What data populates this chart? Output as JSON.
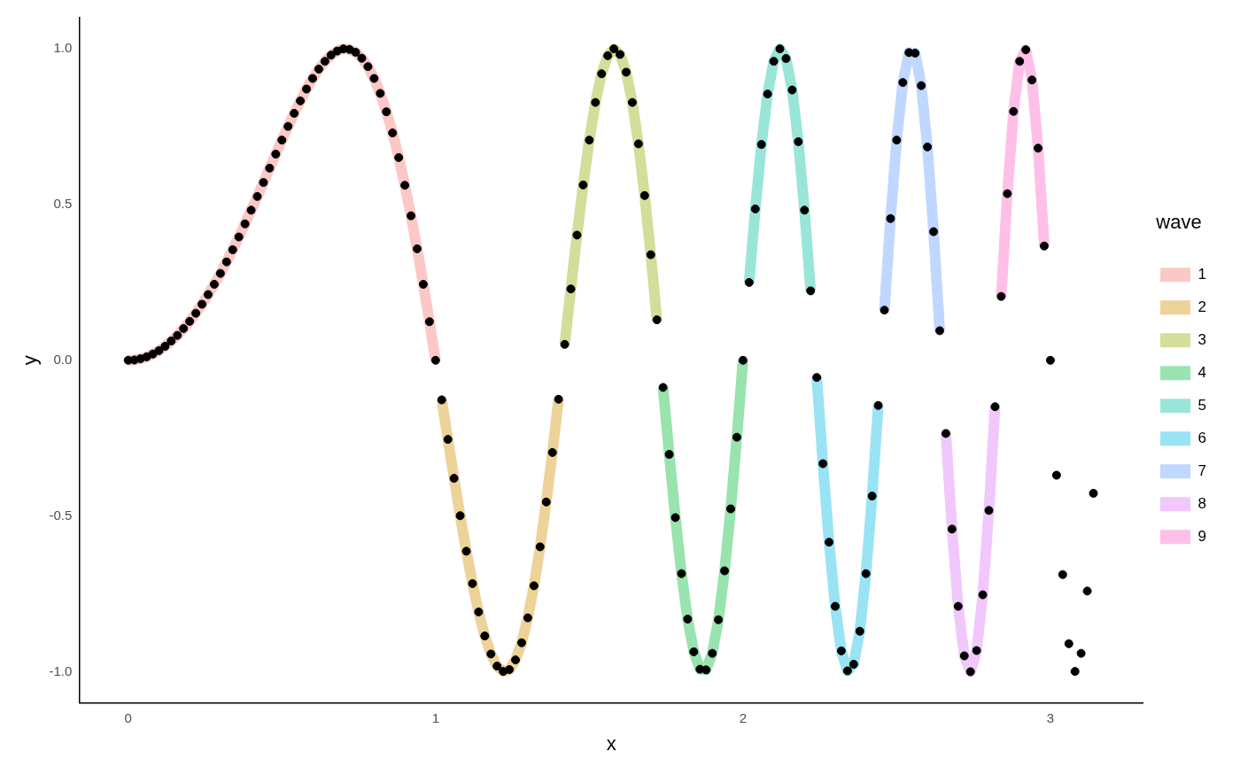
{
  "chart_data": {
    "type": "line",
    "xlabel": "x",
    "ylabel": "y",
    "legend_title": "wave",
    "legend": "right",
    "grid": false,
    "xlim": [
      -0.157,
      3.3
    ],
    "xticks": [
      0,
      1,
      2,
      3
    ],
    "ylim": [
      -1.1,
      1.1
    ],
    "yticks": [
      {
        "value": -1,
        "label": "-1.0"
      },
      {
        "value": -0.5,
        "label": "-0.5"
      },
      {
        "value": 0,
        "label": "0.0"
      },
      {
        "value": 0.5,
        "label": "0.5"
      },
      {
        "value": 1,
        "label": "1.0"
      }
    ],
    "series": [
      {
        "name": "1",
        "color": "#fcc8c5",
        "x": [
          0,
          0.02,
          0.04,
          0.06,
          0.08,
          0.1,
          0.12,
          0.14,
          0.16,
          0.18,
          0.2,
          0.22,
          0.24,
          0.26,
          0.28,
          0.3,
          0.32,
          0.34,
          0.36,
          0.38,
          0.4,
          0.42,
          0.44,
          0.46,
          0.48,
          0.5,
          0.52,
          0.54,
          0.56,
          0.58,
          0.6,
          0.62,
          0.64,
          0.66,
          0.68,
          0.7,
          0.72,
          0.74,
          0.76,
          0.78,
          0.8,
          0.82,
          0.84,
          0.86,
          0.88,
          0.9,
          0.92,
          0.94,
          0.96,
          0.98,
          1
        ],
        "values": [
          0,
          0.001,
          0.005,
          0.011,
          0.02,
          0.031,
          0.045,
          0.062,
          0.08,
          0.102,
          0.125,
          0.151,
          0.18,
          0.211,
          0.244,
          0.279,
          0.316,
          0.355,
          0.396,
          0.438,
          0.482,
          0.526,
          0.571,
          0.617,
          0.662,
          0.707,
          0.751,
          0.793,
          0.833,
          0.871,
          0.905,
          0.935,
          0.96,
          0.98,
          0.993,
          1,
          0.998,
          0.989,
          0.97,
          0.943,
          0.905,
          0.857,
          0.798,
          0.73,
          0.651,
          0.562,
          0.464,
          0.358,
          0.244,
          0.124,
          0
        ]
      },
      {
        "name": "2",
        "color": "#edd399",
        "x": [
          1.02,
          1.04,
          1.06,
          1.08,
          1.1,
          1.12,
          1.14,
          1.16,
          1.18,
          1.2,
          1.22,
          1.24,
          1.26,
          1.28,
          1.3,
          1.32,
          1.34,
          1.36,
          1.38,
          1.4
        ],
        "values": [
          -0.127,
          -0.254,
          -0.379,
          -0.499,
          -0.613,
          -0.717,
          -0.808,
          -0.885,
          -0.943,
          -0.982,
          -0.999,
          -0.993,
          -0.962,
          -0.907,
          -0.827,
          -0.724,
          -0.599,
          -0.455,
          -0.296,
          -0.125
        ]
      },
      {
        "name": "3",
        "color": "#d4dd99",
        "x": [
          1.42,
          1.44,
          1.46,
          1.48,
          1.5,
          1.52,
          1.54,
          1.56,
          1.58,
          1.6,
          1.62,
          1.64,
          1.66,
          1.68,
          1.7,
          1.72
        ],
        "values": [
          0.051,
          0.229,
          0.402,
          0.563,
          0.707,
          0.828,
          0.92,
          0.978,
          1,
          0.982,
          0.925,
          0.828,
          0.695,
          0.529,
          0.339,
          0.13
        ]
      },
      {
        "name": "4",
        "color": "#99e3af",
        "x": [
          1.74,
          1.76,
          1.78,
          1.8,
          1.82,
          1.84,
          1.86,
          1.88,
          1.9,
          1.92,
          1.94,
          1.96,
          1.98,
          2
        ],
        "values": [
          -0.087,
          -0.302,
          -0.505,
          -0.685,
          -0.831,
          -0.936,
          -0.992,
          -0.994,
          -0.941,
          -0.833,
          -0.676,
          -0.477,
          -0.247,
          0
        ]
      },
      {
        "name": "5",
        "color": "#99e6d9",
        "x": [
          2.02,
          2.04,
          2.06,
          2.08,
          2.1,
          2.12,
          2.14,
          2.16,
          2.18,
          2.2,
          2.22
        ],
        "values": [
          0.25,
          0.486,
          0.693,
          0.855,
          0.96,
          1,
          0.969,
          0.868,
          0.702,
          0.482,
          0.223
        ]
      },
      {
        "name": "6",
        "color": "#99e3f4",
        "x": [
          2.24,
          2.26,
          2.28,
          2.3,
          2.32,
          2.34,
          2.36,
          2.38,
          2.4,
          2.42,
          2.44
        ],
        "values": [
          -0.055,
          -0.332,
          -0.584,
          -0.79,
          -0.933,
          -0.997,
          -0.976,
          -0.87,
          -0.685,
          -0.436,
          -0.145
        ]
      },
      {
        "name": "7",
        "color": "#c0d7ff",
        "x": [
          2.46,
          2.48,
          2.5,
          2.52,
          2.54,
          2.56,
          2.58,
          2.6,
          2.62,
          2.64
        ],
        "values": [
          0.161,
          0.455,
          0.707,
          0.892,
          0.988,
          0.986,
          0.882,
          0.685,
          0.413,
          0.095
        ]
      },
      {
        "name": "8",
        "color": "#f1c7fd",
        "x": [
          2.66,
          2.68,
          2.7,
          2.72,
          2.74,
          2.76,
          2.78,
          2.8,
          2.82
        ],
        "values": [
          -0.235,
          -0.542,
          -0.79,
          -0.949,
          -1,
          -0.932,
          -0.753,
          -0.482,
          -0.149
        ]
      },
      {
        "name": "9",
        "color": "#ffc0e7",
        "x": [
          2.84,
          2.86,
          2.88,
          2.9,
          2.92,
          2.94,
          2.96,
          2.98
        ],
        "values": [
          0.205,
          0.535,
          0.799,
          0.96,
          0.997,
          0.9,
          0.681,
          0.367
        ]
      },
      {
        "type": "scatter",
        "color": "#000000",
        "x": [
          0,
          0.02,
          0.04,
          0.06,
          0.08,
          0.1,
          0.12,
          0.14,
          0.16,
          0.18,
          0.2,
          0.22,
          0.24,
          0.26,
          0.28,
          0.3,
          0.32,
          0.34,
          0.36,
          0.38,
          0.4,
          0.42,
          0.44,
          0.46,
          0.48,
          0.5,
          0.52,
          0.54,
          0.56,
          0.58,
          0.6,
          0.62,
          0.64,
          0.66,
          0.68,
          0.7,
          0.72,
          0.74,
          0.76,
          0.78,
          0.8,
          0.82,
          0.84,
          0.86,
          0.88,
          0.9,
          0.92,
          0.94,
          0.96,
          0.98,
          1,
          1.02,
          1.04,
          1.06,
          1.08,
          1.1,
          1.12,
          1.14,
          1.16,
          1.18,
          1.2,
          1.22,
          1.24,
          1.26,
          1.28,
          1.3,
          1.32,
          1.34,
          1.36,
          1.38,
          1.4,
          1.42,
          1.44,
          1.46,
          1.48,
          1.5,
          1.52,
          1.54,
          1.56,
          1.58,
          1.6,
          1.62,
          1.64,
          1.66,
          1.68,
          1.7,
          1.72,
          1.74,
          1.76,
          1.78,
          1.8,
          1.82,
          1.84,
          1.86,
          1.88,
          1.9,
          1.92,
          1.94,
          1.96,
          1.98,
          2,
          2.02,
          2.04,
          2.06,
          2.08,
          2.1,
          2.12,
          2.14,
          2.16,
          2.18,
          2.2,
          2.22,
          2.24,
          2.26,
          2.28,
          2.3,
          2.32,
          2.34,
          2.36,
          2.38,
          2.4,
          2.42,
          2.44,
          2.46,
          2.48,
          2.5,
          2.52,
          2.54,
          2.56,
          2.58,
          2.6,
          2.62,
          2.64,
          2.66,
          2.68,
          2.7,
          2.72,
          2.74,
          2.76,
          2.78,
          2.8,
          2.82,
          2.84,
          2.86,
          2.88,
          2.9,
          2.92,
          2.94,
          2.96,
          2.98,
          3,
          3.02,
          3.04,
          3.06,
          3.08,
          3.1,
          3.12,
          3.14
        ],
        "values": [
          0,
          0.001,
          0.005,
          0.011,
          0.02,
          0.031,
          0.045,
          0.062,
          0.08,
          0.102,
          0.125,
          0.151,
          0.18,
          0.211,
          0.244,
          0.279,
          0.316,
          0.355,
          0.396,
          0.438,
          0.482,
          0.526,
          0.571,
          0.617,
          0.662,
          0.707,
          0.751,
          0.793,
          0.833,
          0.871,
          0.905,
          0.935,
          0.96,
          0.98,
          0.993,
          1,
          0.998,
          0.989,
          0.97,
          0.943,
          0.905,
          0.857,
          0.798,
          0.73,
          0.651,
          0.562,
          0.464,
          0.358,
          0.244,
          0.124,
          0,
          -0.127,
          -0.254,
          -0.379,
          -0.499,
          -0.613,
          -0.717,
          -0.808,
          -0.885,
          -0.943,
          -0.982,
          -0.999,
          -0.993,
          -0.962,
          -0.907,
          -0.827,
          -0.724,
          -0.599,
          -0.455,
          -0.296,
          -0.125,
          0.051,
          0.229,
          0.402,
          0.563,
          0.707,
          0.828,
          0.92,
          0.978,
          1,
          0.982,
          0.925,
          0.828,
          0.695,
          0.529,
          0.339,
          0.13,
          -0.087,
          -0.302,
          -0.505,
          -0.685,
          -0.831,
          -0.936,
          -0.992,
          -0.994,
          -0.941,
          -0.833,
          -0.676,
          -0.477,
          -0.247,
          0,
          0.25,
          0.486,
          0.693,
          0.855,
          0.96,
          1,
          0.969,
          0.868,
          0.702,
          0.482,
          0.223,
          -0.055,
          -0.332,
          -0.584,
          -0.79,
          -0.933,
          -0.997,
          -0.976,
          -0.87,
          -0.685,
          -0.436,
          -0.145,
          0.161,
          0.455,
          0.707,
          0.892,
          0.988,
          0.986,
          0.882,
          0.685,
          0.413,
          0.095,
          -0.235,
          -0.542,
          -0.79,
          -0.949,
          -1,
          -0.932,
          -0.753,
          -0.482,
          -0.149,
          0.205,
          0.535,
          0.799,
          0.96,
          0.997,
          0.9,
          0.681,
          0.367,
          0,
          -0.369,
          -0.688,
          -0.91,
          -0.999,
          -0.941,
          -0.741,
          -0.427
        ]
      }
    ]
  }
}
